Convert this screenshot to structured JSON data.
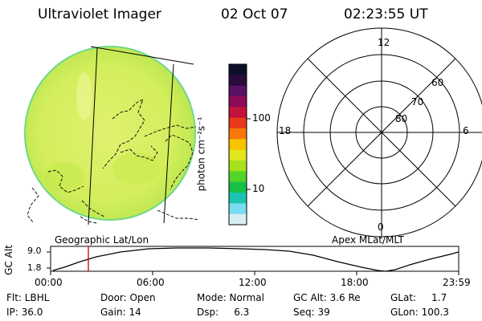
{
  "header": {
    "title": "Ultraviolet Imager",
    "date": "02 Oct 07",
    "time": "02:23:55 UT"
  },
  "colorbar": {
    "unit_label": "photon cm⁻²s⁻¹",
    "ticks": [
      "100",
      "10"
    ],
    "colors": [
      "#0d0f2a",
      "#2b0a3d",
      "#5a1166",
      "#8e0a58",
      "#c0143c",
      "#e83a1a",
      "#f8780a",
      "#f6c400",
      "#e2e61c",
      "#a6e21c",
      "#54d428",
      "#18c048",
      "#1cc4b0",
      "#78ddee",
      "#d8eef2"
    ]
  },
  "image_panel": {
    "label": "Geographic Lat/Lon",
    "fill_color": "#d2ee5a"
  },
  "polar_plot": {
    "label": "Apex MLat/MLT",
    "mlt_labels": [
      "12",
      "18",
      "6",
      "0"
    ],
    "lat_labels": [
      "60",
      "70",
      "80"
    ]
  },
  "altitude_strip": {
    "axis_label": "GC Alt",
    "y_ticks": [
      "9.0",
      "1.8"
    ],
    "x_ticks": [
      "00:00",
      "06:00",
      "12:00",
      "18:00",
      "23:59"
    ],
    "marker_color": "#c00000"
  },
  "info": {
    "flt": "Flt: LBHL",
    "ip": "IP: 36.0",
    "door": "Door: Open",
    "gain": "Gain: 14",
    "mode": "Mode: Normal",
    "dsp": "Dsp:     6.3",
    "gc_alt": "GC Alt: 3.6 Re",
    "seq": "Seq: 39",
    "glat": "GLat:     1.7",
    "glon": "GLon: 100.3"
  }
}
